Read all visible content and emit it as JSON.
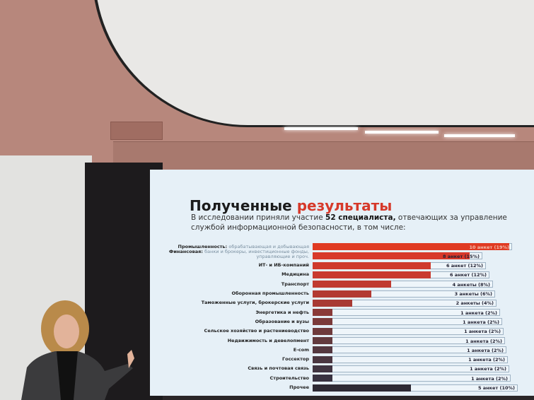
{
  "slide": {
    "title_main": "Полученные",
    "title_accent": "результаты",
    "subtitle_pre": "В исследовании приняли участие",
    "subtitle_bold": "52 специалиста,",
    "subtitle_post": "отвечающих за управление службой информационной безопасности, в том числе:"
  },
  "colors": {
    "accent": "#d6392a",
    "dark_bar": "#3a2e33"
  },
  "chart_data": {
    "type": "bar",
    "orientation": "horizontal",
    "categories": [
      {
        "label": "Промышленность:",
        "desc": "обрабатывающая и добывающая"
      },
      {
        "label": "Финансовая:",
        "desc": "банки и брокеры, инвестиционные фонды, управляющие и проч."
      },
      {
        "label": "ИТ- и ИБ-компаний",
        "desc": ""
      },
      {
        "label": "Медицина",
        "desc": ""
      },
      {
        "label": "Транспорт",
        "desc": ""
      },
      {
        "label": "Оборонная промышленность",
        "desc": ""
      },
      {
        "label": "Таможенные услуги, брокерские услуги",
        "desc": ""
      },
      {
        "label": "Энергетика и нефть",
        "desc": ""
      },
      {
        "label": "Образование и вузы",
        "desc": ""
      },
      {
        "label": "Сельское хозяйство и растениеводство",
        "desc": ""
      },
      {
        "label": "Недвижимость и девелопмент",
        "desc": ""
      },
      {
        "label": "E-com",
        "desc": ""
      },
      {
        "label": "Госсектор",
        "desc": ""
      },
      {
        "label": "Связь и почтовая связь",
        "desc": ""
      },
      {
        "label": "Строительство",
        "desc": ""
      },
      {
        "label": "Прочее",
        "desc": ""
      }
    ],
    "values": [
      10,
      8,
      6,
      6,
      4,
      3,
      2,
      1,
      1,
      1,
      1,
      1,
      1,
      1,
      1,
      5
    ],
    "data_labels": [
      "10 анкет (19%)",
      "8 анкет (15%)",
      "6 анкет (12%)",
      "6 анкет (12%)",
      "4 анкеты (8%)",
      "3 анкеты (6%)",
      "2 анкеты (4%)",
      "1 анкета (2%)",
      "1 анкета (2%)",
      "1 анкета (2%)",
      "1 анкета (2%)",
      "1 анкета (2%)",
      "1 анкета (2%)",
      "1 анкета (2%)",
      "1 анкета (2%)",
      "5 анкет (10%)"
    ],
    "bar_colors": [
      "#e03a22",
      "#d8392a",
      "#cf3a2c",
      "#c93a2e",
      "#c03a30",
      "#b33a32",
      "#a83a34",
      "#8a3a38",
      "#7a3a3a",
      "#6e3a3c",
      "#623a3e",
      "#543840",
      "#4a3640",
      "#403440",
      "#383240",
      "#2e2a34"
    ],
    "xlim": [
      0,
      10
    ]
  }
}
